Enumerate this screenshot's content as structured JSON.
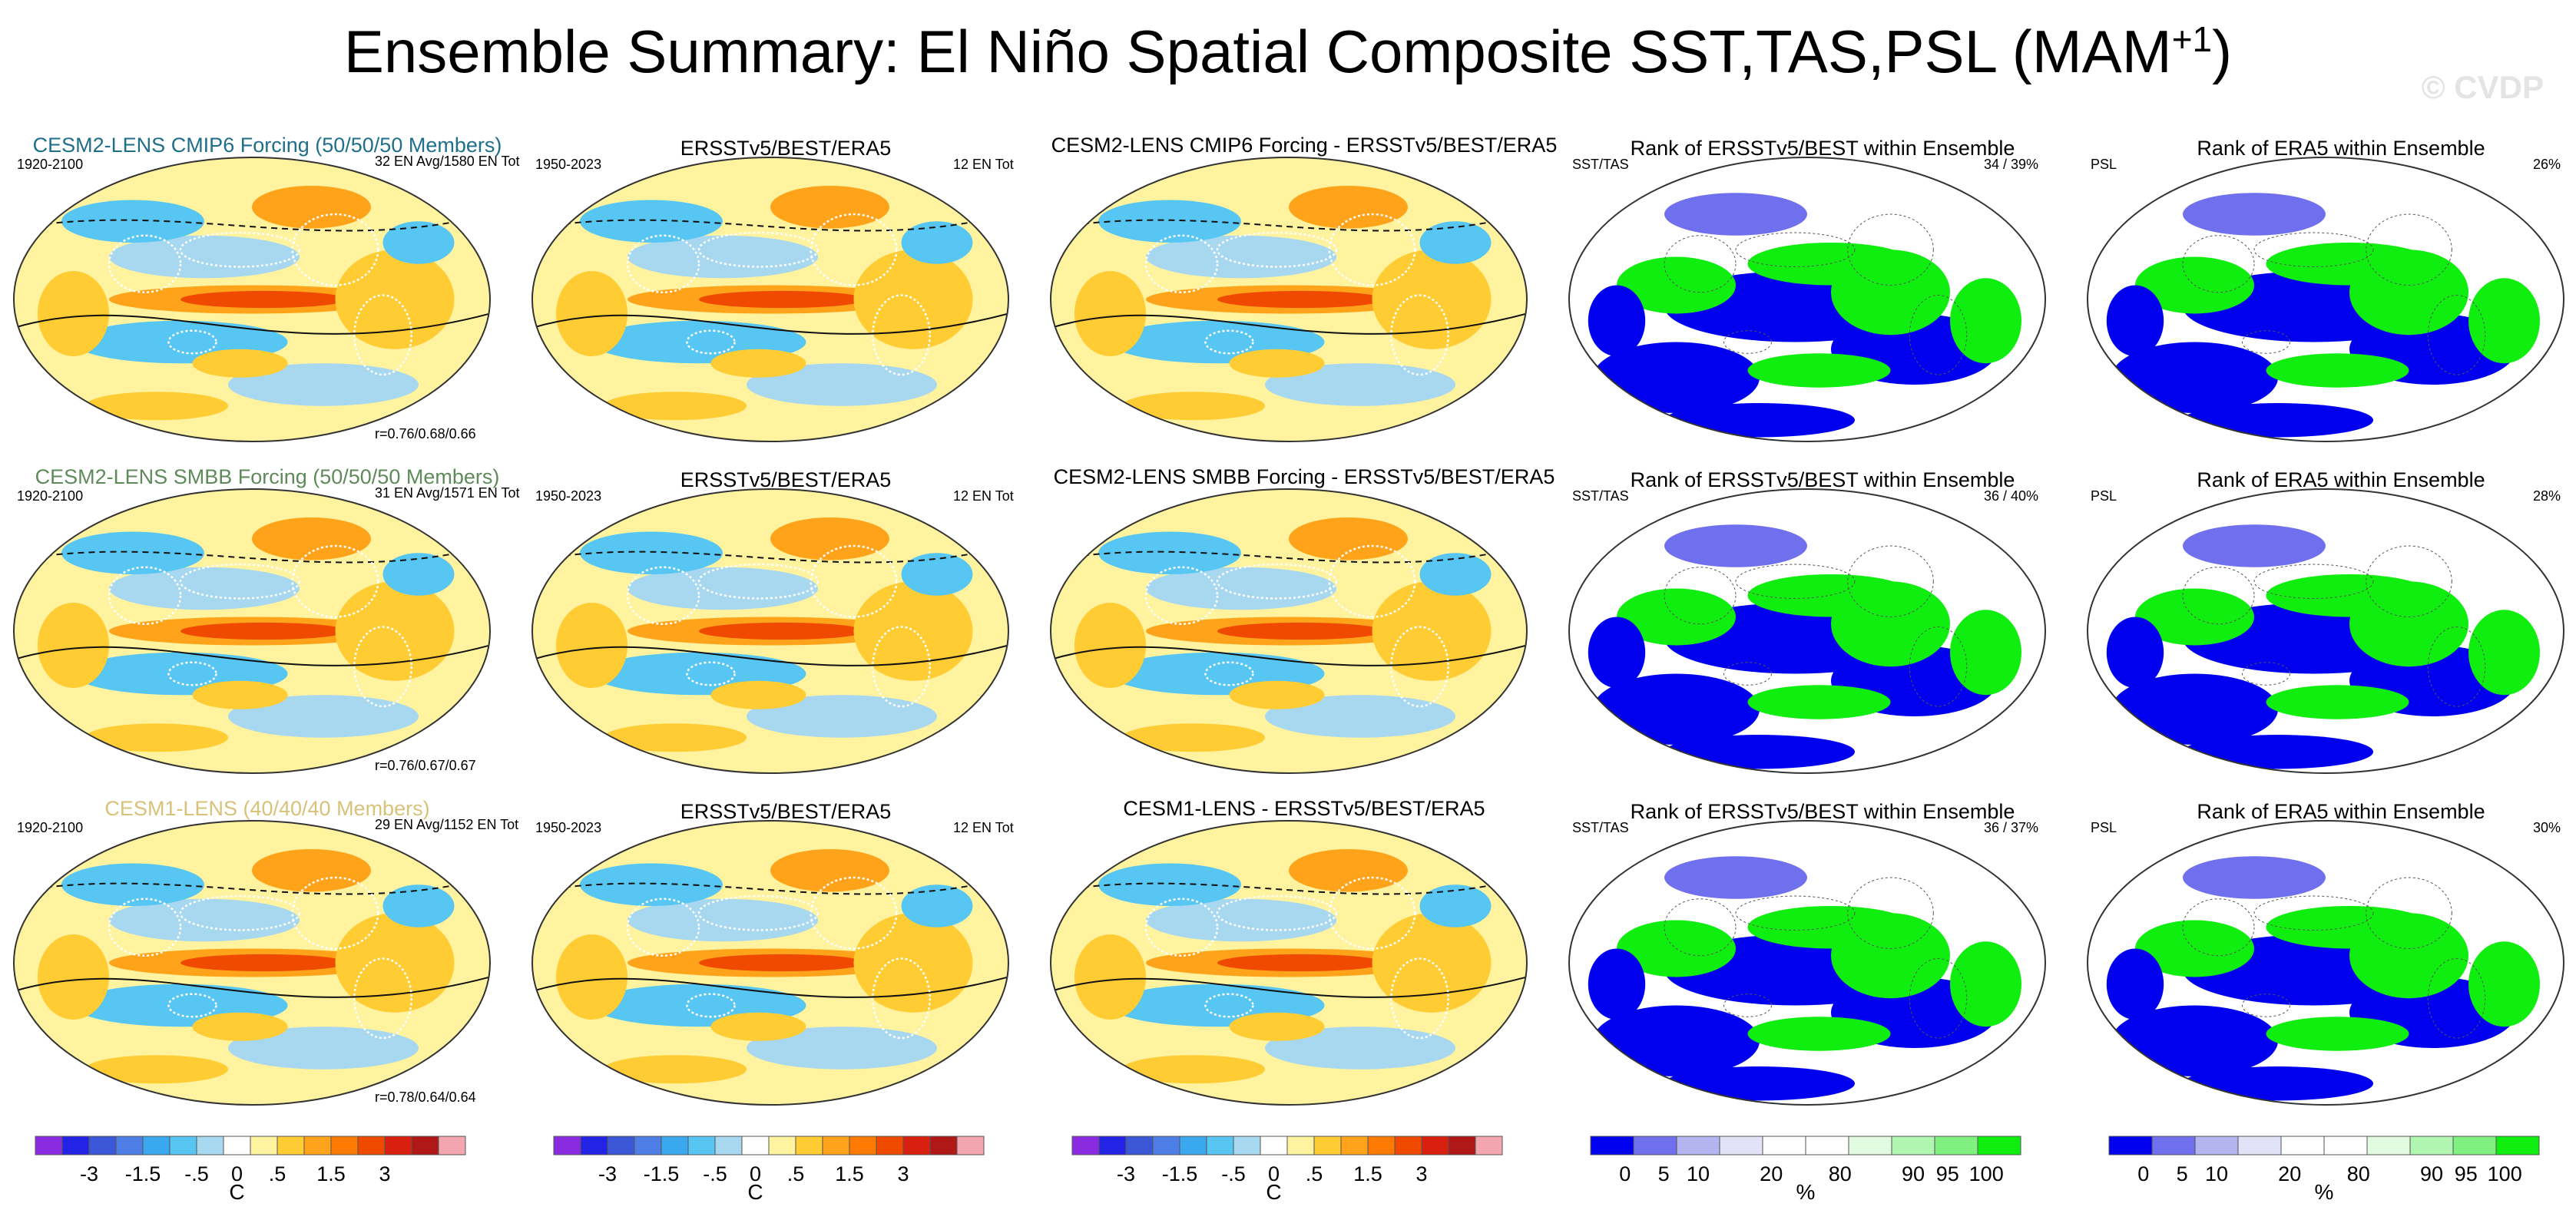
{
  "title_main": "Ensemble Summary: El Niño Spatial Composite SST,TAS,PSL (MAM",
  "title_sup": "+1",
  "title_close": ")",
  "watermark": "© CVDP",
  "rows": [
    {
      "model_title": "CESM2-LENS CMIP6 Forcing (50/50/50 Members)",
      "model_color": "#1f6f8b",
      "model_period": "1920-2100",
      "model_en": "32 EN Avg/1580 EN Tot",
      "model_r": "r=0.76/0.68/0.66",
      "obs_title": "ERSSTv5/BEST/ERA5",
      "obs_period": "1950-2023",
      "obs_en": "12 EN Tot",
      "diff_title": "CESM2-LENS CMIP6 Forcing - ERSSTv5/BEST/ERA5",
      "rank_sst_title": "Rank of ERSSTv5/BEST within Ensemble",
      "rank_sst_label": "SST/TAS",
      "rank_sst_pct": "34 / 39%",
      "rank_psl_title": "Rank of ERA5 within Ensemble",
      "rank_psl_label": "PSL",
      "rank_psl_pct": "26%"
    },
    {
      "model_title": "CESM2-LENS SMBB Forcing (50/50/50 Members)",
      "model_color": "#5f8a5a",
      "model_period": "1920-2100",
      "model_en": "31 EN Avg/1571 EN Tot",
      "model_r": "r=0.76/0.67/0.67",
      "obs_title": "ERSSTv5/BEST/ERA5",
      "obs_period": "1950-2023",
      "obs_en": "12 EN Tot",
      "diff_title": "CESM2-LENS SMBB Forcing - ERSSTv5/BEST/ERA5",
      "rank_sst_title": "Rank of ERSSTv5/BEST within Ensemble",
      "rank_sst_label": "SST/TAS",
      "rank_sst_pct": "36 / 40%",
      "rank_psl_title": "Rank of ERA5 within Ensemble",
      "rank_psl_label": "PSL",
      "rank_psl_pct": "28%"
    },
    {
      "model_title": "CESM1-LENS (40/40/40 Members)",
      "model_color": "#d8c27a",
      "model_period": "1920-2100",
      "model_en": "29 EN Avg/1152 EN Tot",
      "model_r": "r=0.78/0.64/0.64",
      "obs_title": "ERSSTv5/BEST/ERA5",
      "obs_period": "1950-2023",
      "obs_en": "12 EN Tot",
      "diff_title": "CESM1-LENS - ERSSTv5/BEST/ERA5",
      "rank_sst_title": "Rank of ERSSTv5/BEST within Ensemble",
      "rank_sst_label": "SST/TAS",
      "rank_sst_pct": "36 / 37%",
      "rank_psl_title": "Rank of ERA5 within Ensemble",
      "rank_psl_label": "PSL",
      "rank_psl_pct": "30%"
    }
  ],
  "colorbar_anom": {
    "colors": [
      "#8a2be2",
      "#2323e6",
      "#3a57d8",
      "#4d7ee6",
      "#39a8ef",
      "#57c6f2",
      "#a8d8f0",
      "#ffffff",
      "#fff3a0",
      "#ffcc33",
      "#ffa31a",
      "#ff7a00",
      "#f04a00",
      "#d92010",
      "#b01818",
      "#f4a6b0"
    ],
    "labels": [
      "-3",
      "-1.5",
      "-.5",
      "0",
      ".5",
      "1.5",
      "3"
    ],
    "unit": "C"
  },
  "colorbar_rank": {
    "colors": [
      "#0000ee",
      "#7070ee",
      "#b4b4f0",
      "#e2e2f8",
      "#ffffff",
      "#ffffff",
      "#e0fbe0",
      "#b0f5b0",
      "#80f080",
      "#10ee10"
    ],
    "labels": [
      "0",
      "5",
      "10",
      "20",
      "80",
      "90",
      "95",
      "100"
    ],
    "unit": "%"
  },
  "chart_data": {
    "type": "heatmap",
    "title": "Ensemble Summary: El Niño Spatial Composite SST,TAS,PSL (MAM+1)",
    "panels_per_row": [
      "model ensemble composite",
      "observations composite",
      "model minus observations",
      "rank of ERSSTv5/BEST within ensemble",
      "rank of ERA5 within ensemble"
    ],
    "rows": [
      "CESM2-LENS CMIP6 Forcing (50/50/50 Members)",
      "CESM2-LENS SMBB Forcing (50/50/50 Members)",
      "CESM1-LENS (40/40/40 Members)"
    ],
    "anomaly_levels": [
      -3,
      -1.5,
      -0.5,
      0,
      0.5,
      1.5,
      3
    ],
    "anomaly_unit": "C",
    "rank_levels": [
      0,
      5,
      10,
      20,
      80,
      90,
      95,
      100
    ],
    "rank_unit": "%",
    "pattern_correlations": [
      "0.76/0.68/0.66",
      "0.76/0.67/0.67",
      "0.78/0.64/0.64"
    ],
    "rank_sst_tas_pct": [
      "34 / 39%",
      "36 / 40%",
      "36 / 37%"
    ],
    "rank_psl_pct": [
      "26%",
      "28%",
      "30%"
    ]
  }
}
